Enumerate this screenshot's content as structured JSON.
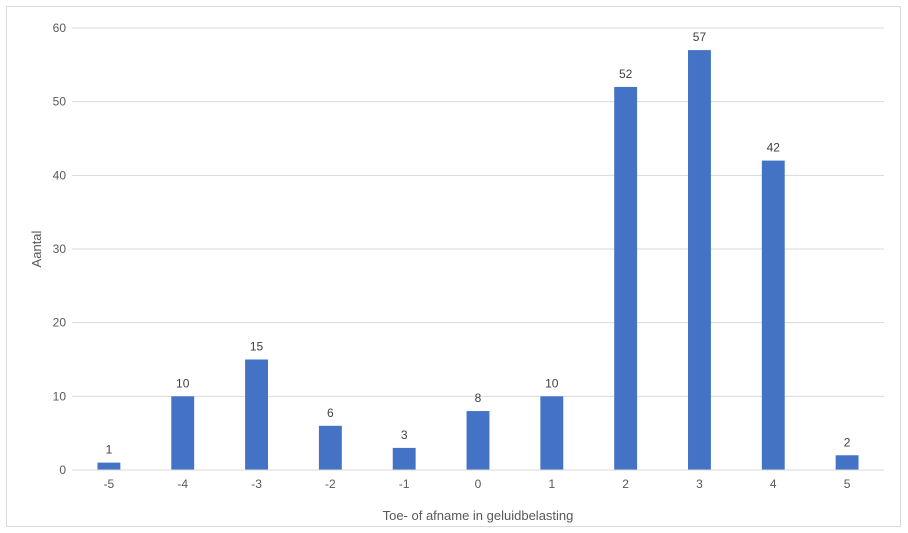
{
  "chart_data": {
    "type": "bar",
    "title": "",
    "xlabel": "Toe- of afname in geluidbelasting",
    "ylabel": "Aantal",
    "categories": [
      "-5",
      "-4",
      "-3",
      "-2",
      "-1",
      "0",
      "1",
      "2",
      "3",
      "4",
      "5"
    ],
    "series": [
      {
        "values": [
          1,
          10,
          15,
          6,
          3,
          8,
          10,
          52,
          57,
          42,
          2
        ]
      }
    ],
    "ylim": [
      0,
      60
    ],
    "yticks": [
      0,
      10,
      20,
      30,
      40,
      50,
      60
    ],
    "grid": true,
    "legend": "none",
    "data_labels": true,
    "bar_color": "#4472c4",
    "grid_color": "#d9d9d9"
  }
}
